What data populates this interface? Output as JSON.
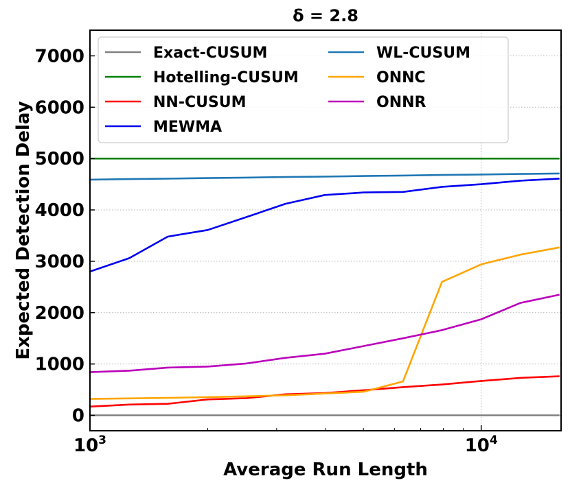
{
  "chart_data": {
    "type": "line",
    "title": "δ = 2.8",
    "xlabel": "Average Run Length",
    "ylabel": "Expected Detection Delay",
    "xscale": "log",
    "xlim": [
      1000,
      16000
    ],
    "ylim": [
      -300,
      7500
    ],
    "yticks": [
      0,
      1000,
      2000,
      3000,
      4000,
      5000,
      6000,
      7000
    ],
    "ytick_labels": [
      "0",
      "1000",
      "2000",
      "3000",
      "4000",
      "5000",
      "6000",
      "7000"
    ],
    "xticks": [
      1000,
      10000
    ],
    "xtick_labels": [
      {
        "base": "10",
        "exp": "3"
      },
      {
        "base": "10",
        "exp": "4"
      }
    ],
    "grid": true,
    "legend_position": "top",
    "x": [
      1000,
      1260,
      1580,
      2000,
      2510,
      3160,
      3980,
      5010,
      6310,
      7940,
      10000,
      12600,
      15850
    ],
    "series": [
      {
        "name": "Exact-CUSUM",
        "color": "#808080",
        "values": [
          0,
          0,
          0,
          0,
          0,
          0,
          0,
          0,
          0,
          0,
          0,
          0,
          0
        ]
      },
      {
        "name": "Hotelling-CUSUM",
        "color": "#008000",
        "values": [
          5000,
          5000,
          5000,
          5000,
          5000,
          5000,
          5000,
          5000,
          5000,
          5000,
          5000,
          5000,
          5000
        ]
      },
      {
        "name": "NN-CUSUM",
        "color": "#ff0000",
        "values": [
          170,
          210,
          225,
          310,
          335,
          410,
          435,
          490,
          550,
          600,
          670,
          730,
          760
        ]
      },
      {
        "name": "MEWMA",
        "color": "#0000ee",
        "values": [
          2800,
          3060,
          3480,
          3610,
          3860,
          4120,
          4290,
          4340,
          4350,
          4450,
          4500,
          4570,
          4610
        ]
      },
      {
        "name": "WL-CUSUM",
        "color": "#1f77b4",
        "values": [
          4590,
          4600,
          4610,
          4620,
          4630,
          4640,
          4650,
          4660,
          4670,
          4680,
          4690,
          4700,
          4710
        ]
      },
      {
        "name": "ONNC",
        "color": "#ffa500",
        "values": [
          320,
          330,
          340,
          355,
          370,
          390,
          425,
          460,
          660,
          2600,
          2940,
          3130,
          3270
        ]
      },
      {
        "name": "ONNR",
        "color": "#bb00bb",
        "values": [
          840,
          870,
          930,
          950,
          1010,
          1120,
          1200,
          1350,
          1500,
          1660,
          1870,
          2190,
          2350
        ]
      }
    ]
  }
}
